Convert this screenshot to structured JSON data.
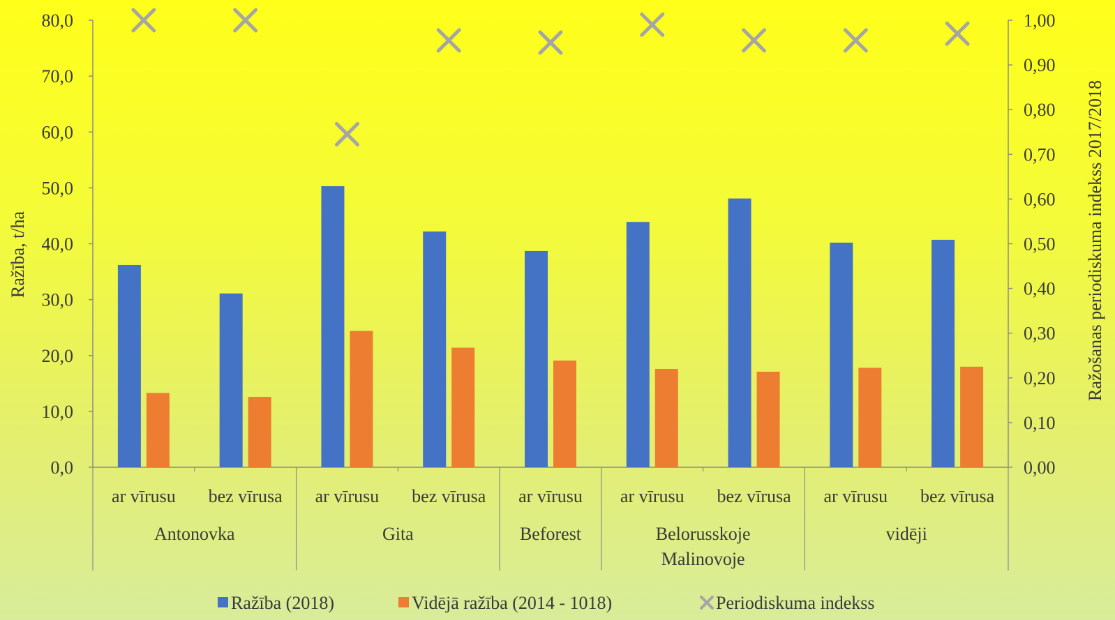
{
  "chart_data": {
    "type": "bar",
    "groups": [
      {
        "label": "Antonovka",
        "label_lines": [
          "Antonovka"
        ],
        "categories": [
          "ar vīrusu",
          "bez vīrusa"
        ]
      },
      {
        "label": "Gita",
        "label_lines": [
          "Gita"
        ],
        "categories": [
          "ar vīrusu",
          "bez vīrusa"
        ]
      },
      {
        "label": "Beforest",
        "label_lines": [
          "Beforest"
        ],
        "categories": [
          "ar vīrusu"
        ]
      },
      {
        "label": "Belorusskoje Malinovoje",
        "label_lines": [
          "Belorusskoje",
          "Malinovoje"
        ],
        "categories": [
          "ar vīrusu",
          "bez vīrusa"
        ]
      },
      {
        "label": "vidēji",
        "label_lines": [
          "vidēji"
        ],
        "categories": [
          "ar vīrusu",
          "bez vīrusa"
        ]
      }
    ],
    "series": [
      {
        "name": "Ražība (2018)",
        "axis": "left",
        "marker": "bar",
        "color": "#4472c4",
        "values": [
          36.2,
          31.1,
          50.3,
          42.2,
          38.7,
          43.9,
          48.1,
          40.2,
          40.7
        ]
      },
      {
        "name": "Vidējā ražība (2014 - 1018)",
        "axis": "left",
        "marker": "bar",
        "color": "#ed7d31",
        "values": [
          13.3,
          12.6,
          24.4,
          21.4,
          19.1,
          17.6,
          17.1,
          17.8,
          18.0
        ]
      },
      {
        "name": "Periodiskuma indekss",
        "axis": "right",
        "marker": "x",
        "color": "#a5a5a5",
        "values": [
          1.0,
          1.0,
          0.745,
          0.955,
          0.95,
          0.99,
          0.955,
          0.955,
          0.97
        ]
      }
    ],
    "ylabel": "Ražība, t/ha",
    "ylabel_right": "Ražošanas periodiskuma indekss  2017/2018",
    "ylim": [
      0,
      80
    ],
    "ylim_right": [
      0,
      1
    ],
    "yticks": [
      "0,0",
      "10,0",
      "20,0",
      "30,0",
      "40,0",
      "50,0",
      "60,0",
      "70,0",
      "80,0"
    ],
    "yticks_right": [
      "0,00",
      "0,10",
      "0,20",
      "0,30",
      "0,40",
      "0,50",
      "0,60",
      "0,70",
      "0,80",
      "0,90",
      "1,00"
    ],
    "legend_position": "bottom",
    "grid": false
  }
}
